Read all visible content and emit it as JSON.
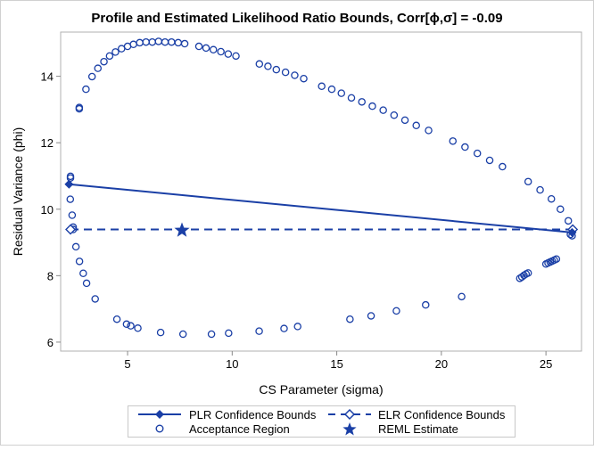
{
  "chart_data": {
    "type": "scatter",
    "title": "Profile and Estimated Likelihood Ratio Bounds, Corr[ϕ,σ] = -0.09",
    "xlabel": "CS Parameter (sigma)",
    "ylabel": "Residual Variance (phi)",
    "xlim": [
      1.8,
      26.7
    ],
    "ylim": [
      5.73,
      15.33
    ],
    "xticks": [
      5,
      10,
      15,
      20,
      25
    ],
    "yticks": [
      6,
      8,
      10,
      12,
      14
    ],
    "grid": false,
    "legend_position": "bottom",
    "color": "#1a3fa6",
    "series": [
      {
        "name": "PLR Confidence Bounds",
        "style": "solid-line-filled-diamond",
        "points": [
          [
            2.2,
            10.75
          ],
          [
            26.25,
            9.3
          ]
        ]
      },
      {
        "name": "ELR Confidence Bounds",
        "style": "dashed-line-open-diamond",
        "points": [
          [
            2.27,
            9.39
          ],
          [
            26.28,
            9.39
          ]
        ]
      },
      {
        "name": "Acceptance Region",
        "style": "open-circle",
        "points": [
          [
            2.27,
            10.99
          ],
          [
            2.27,
            10.94
          ],
          [
            2.26,
            10.3
          ],
          [
            2.35,
            9.82
          ],
          [
            2.4,
            9.46
          ],
          [
            2.4,
            9.39
          ],
          [
            2.53,
            8.87
          ],
          [
            2.7,
            8.43
          ],
          [
            2.88,
            8.07
          ],
          [
            3.04,
            7.77
          ],
          [
            3.45,
            7.3
          ],
          [
            4.49,
            6.69
          ],
          [
            4.95,
            6.54
          ],
          [
            5.15,
            6.49
          ],
          [
            5.49,
            6.42
          ],
          [
            6.58,
            6.29
          ],
          [
            7.65,
            6.24
          ],
          [
            9.01,
            6.24
          ],
          [
            9.83,
            6.27
          ],
          [
            11.29,
            6.33
          ],
          [
            12.48,
            6.41
          ],
          [
            13.13,
            6.47
          ],
          [
            15.63,
            6.69
          ],
          [
            16.64,
            6.79
          ],
          [
            17.85,
            6.94
          ],
          [
            19.25,
            7.12
          ],
          [
            20.97,
            7.37
          ],
          [
            23.75,
            7.92
          ],
          [
            23.85,
            7.96
          ],
          [
            23.95,
            8.01
          ],
          [
            24.05,
            8.05
          ],
          [
            24.15,
            8.08
          ],
          [
            25.0,
            8.35
          ],
          [
            25.1,
            8.38
          ],
          [
            25.2,
            8.41
          ],
          [
            25.3,
            8.44
          ],
          [
            25.4,
            8.47
          ],
          [
            25.5,
            8.5
          ],
          [
            26.17,
            9.24
          ],
          [
            26.25,
            9.2
          ],
          [
            26.07,
            9.65
          ],
          [
            25.69,
            10.0
          ],
          [
            25.26,
            10.31
          ],
          [
            24.72,
            10.58
          ],
          [
            24.15,
            10.83
          ],
          [
            22.92,
            11.28
          ],
          [
            22.31,
            11.47
          ],
          [
            21.72,
            11.68
          ],
          [
            21.13,
            11.87
          ],
          [
            20.55,
            12.05
          ],
          [
            19.39,
            12.37
          ],
          [
            18.8,
            12.52
          ],
          [
            18.26,
            12.68
          ],
          [
            17.74,
            12.83
          ],
          [
            17.22,
            12.98
          ],
          [
            16.7,
            13.1
          ],
          [
            16.2,
            13.23
          ],
          [
            15.7,
            13.35
          ],
          [
            15.22,
            13.49
          ],
          [
            14.76,
            13.61
          ],
          [
            14.28,
            13.7
          ],
          [
            13.42,
            13.93
          ],
          [
            12.99,
            14.03
          ],
          [
            12.55,
            14.12
          ],
          [
            12.11,
            14.2
          ],
          [
            11.71,
            14.3
          ],
          [
            11.3,
            14.37
          ],
          [
            10.18,
            14.61
          ],
          [
            9.81,
            14.67
          ],
          [
            9.46,
            14.74
          ],
          [
            9.1,
            14.8
          ],
          [
            8.75,
            14.85
          ],
          [
            8.41,
            14.9
          ],
          [
            7.73,
            14.98
          ],
          [
            7.42,
            15.01
          ],
          [
            7.1,
            15.03
          ],
          [
            6.79,
            15.03
          ],
          [
            6.48,
            15.05
          ],
          [
            6.18,
            15.03
          ],
          [
            5.88,
            15.03
          ],
          [
            5.58,
            15.01
          ],
          [
            5.28,
            14.96
          ],
          [
            5.0,
            14.9
          ],
          [
            4.71,
            14.83
          ],
          [
            4.42,
            14.73
          ],
          [
            4.14,
            14.61
          ],
          [
            3.87,
            14.44
          ],
          [
            3.58,
            14.24
          ],
          [
            3.3,
            13.99
          ],
          [
            3.01,
            13.61
          ],
          [
            2.69,
            13.06
          ],
          [
            2.69,
            13.02
          ]
        ]
      },
      {
        "name": "REML Estimate",
        "style": "filled-star",
        "points": [
          [
            7.6,
            9.39
          ]
        ]
      }
    ]
  }
}
